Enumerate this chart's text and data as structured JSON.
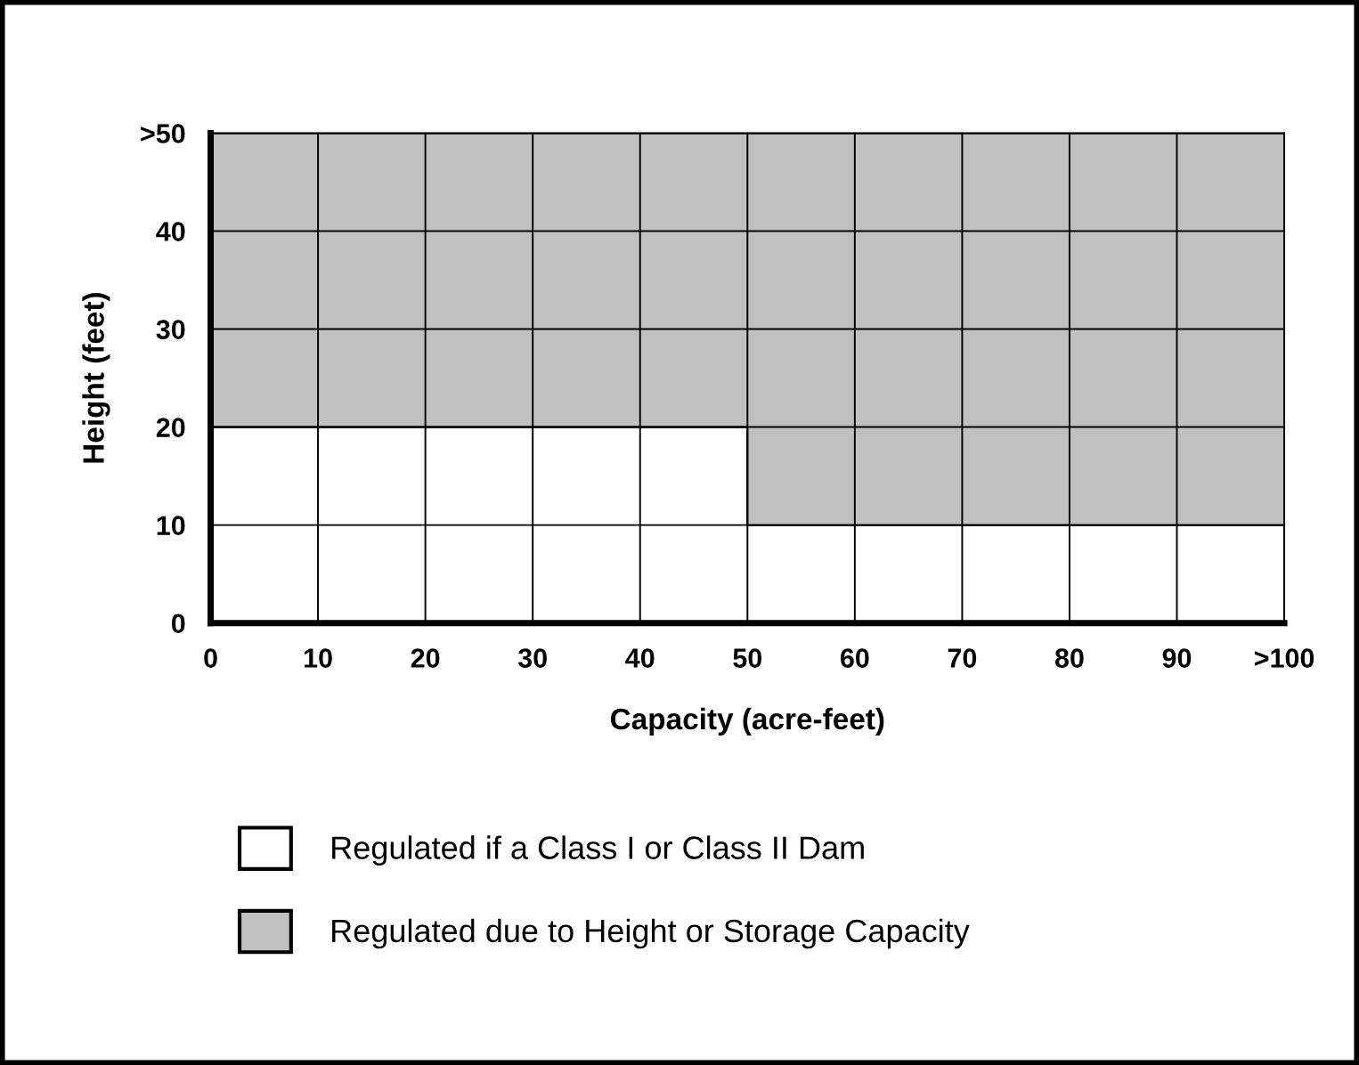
{
  "chart_data": {
    "type": "area",
    "stacked": true,
    "xlabel": "Capacity (acre-feet)",
    "ylabel": "Height (feet)",
    "x": [
      0,
      50,
      50,
      100
    ],
    "series": [
      {
        "name": "Regulated if a Class I or Class II Dam",
        "color": "#ffffff",
        "values": [
          20,
          20,
          10,
          10
        ]
      },
      {
        "name": "Regulated due to Height or Storage Capacity",
        "color": "#c0c0c0",
        "values": [
          30,
          30,
          40,
          40
        ]
      }
    ],
    "xlim": [
      0,
      100
    ],
    "xticks": [
      0,
      10,
      20,
      30,
      40,
      50,
      60,
      70,
      80,
      90,
      {
        "value": 100,
        "label": ">100"
      }
    ],
    "ylim": [
      0,
      50
    ],
    "yticks": [
      0,
      10,
      20,
      30,
      40,
      {
        "value": 50,
        "label": ">50"
      }
    ],
    "grid": true,
    "legend": "bottom"
  }
}
